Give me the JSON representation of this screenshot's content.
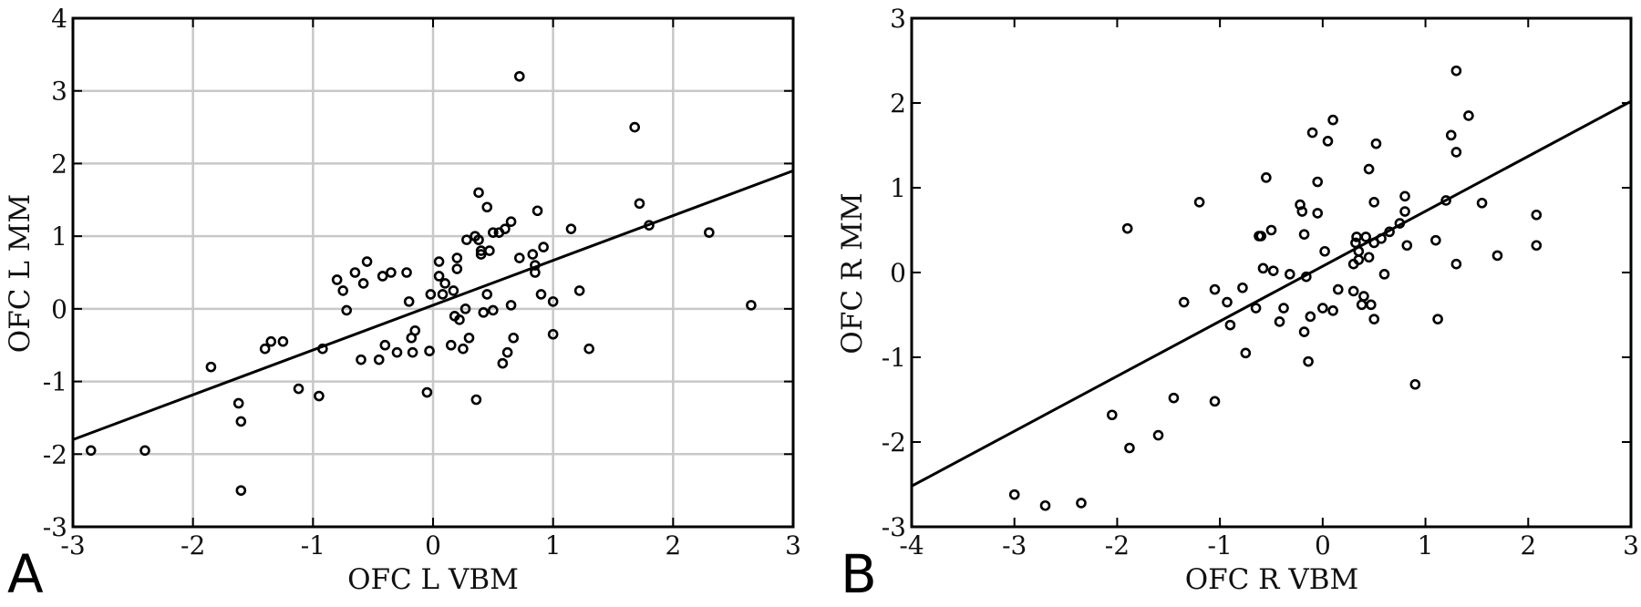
{
  "chart_data": [
    {
      "type": "scatter",
      "panel_label": "A",
      "xlabel": "OFC L  VBM",
      "ylabel": "OFC L  MM",
      "xlim": [
        -3,
        3
      ],
      "ylim": [
        -3,
        4
      ],
      "xticks": [
        -3,
        -2,
        -1,
        0,
        1,
        2,
        3
      ],
      "yticks": [
        -3,
        -2,
        -1,
        0,
        1,
        2,
        3,
        4
      ],
      "grid": true,
      "fit_line": {
        "x": [
          -3,
          3
        ],
        "y": [
          -1.8,
          1.9
        ]
      },
      "points": {
        "x": [
          -2.85,
          -2.4,
          -1.85,
          -1.62,
          -1.6,
          -1.6,
          -1.4,
          -1.35,
          -1.25,
          -1.12,
          -0.95,
          -0.92,
          -0.8,
          -0.75,
          -0.72,
          -0.65,
          -0.6,
          -0.58,
          -0.55,
          -0.45,
          -0.42,
          -0.4,
          -0.35,
          -0.3,
          -0.22,
          -0.2,
          -0.18,
          -0.17,
          -0.15,
          -0.05,
          -0.03,
          -0.02,
          0.05,
          0.05,
          0.08,
          0.1,
          0.15,
          0.17,
          0.18,
          0.2,
          0.2,
          0.22,
          0.25,
          0.27,
          0.28,
          0.3,
          0.35,
          0.36,
          0.38,
          0.38,
          0.4,
          0.4,
          0.42,
          0.45,
          0.45,
          0.47,
          0.5,
          0.5,
          0.55,
          0.58,
          0.6,
          0.62,
          0.65,
          0.65,
          0.67,
          0.72,
          0.72,
          0.83,
          0.85,
          0.85,
          0.87,
          0.9,
          0.92,
          1.0,
          1.0,
          1.15,
          1.22,
          1.3,
          1.68,
          1.72,
          1.8,
          2.3,
          2.65
        ],
        "y": [
          -1.95,
          -1.95,
          -0.8,
          -1.3,
          -2.5,
          -1.55,
          -0.55,
          -0.45,
          -0.45,
          -1.1,
          -1.2,
          -0.55,
          0.4,
          0.25,
          -0.02,
          0.5,
          -0.7,
          0.35,
          0.65,
          -0.7,
          0.45,
          -0.5,
          0.5,
          -0.6,
          0.5,
          0.1,
          -0.4,
          -0.6,
          -0.3,
          -1.15,
          -0.58,
          0.2,
          0.65,
          0.45,
          0.2,
          0.35,
          -0.5,
          0.25,
          -0.1,
          0.7,
          0.55,
          -0.15,
          -0.55,
          0.0,
          0.95,
          -0.4,
          1.0,
          -1.25,
          0.95,
          1.6,
          0.75,
          0.8,
          -0.05,
          0.2,
          1.4,
          0.8,
          1.05,
          -0.02,
          1.05,
          -0.75,
          1.1,
          -0.6,
          0.05,
          1.2,
          -0.4,
          3.2,
          0.7,
          0.75,
          0.5,
          0.6,
          1.35,
          0.2,
          0.85,
          0.1,
          -0.35,
          1.1,
          0.25,
          -0.55,
          2.5,
          1.45,
          1.15,
          1.05,
          0.05
        ]
      }
    },
    {
      "type": "scatter",
      "panel_label": "B",
      "xlabel": "OFC R  VBM",
      "ylabel": "OFC R  MM",
      "xlim": [
        -4,
        3
      ],
      "ylim": [
        -3,
        3
      ],
      "xticks": [
        -4,
        -3,
        -2,
        -1,
        0,
        1,
        2,
        3
      ],
      "yticks": [
        -3,
        -2,
        -1,
        0,
        1,
        2,
        3
      ],
      "grid": false,
      "fit_line": {
        "x": [
          -4,
          3
        ],
        "y": [
          -2.52,
          2.02
        ]
      },
      "points": {
        "x": [
          -3.0,
          -2.7,
          -2.35,
          -2.05,
          -1.9,
          -1.88,
          -1.6,
          -1.45,
          -1.35,
          -1.2,
          -1.05,
          -1.05,
          -0.93,
          -0.9,
          -0.78,
          -0.75,
          -0.65,
          -0.62,
          -0.6,
          -0.58,
          -0.55,
          -0.5,
          -0.48,
          -0.42,
          -0.38,
          -0.32,
          -0.22,
          -0.2,
          -0.18,
          -0.18,
          -0.16,
          -0.14,
          -0.12,
          -0.1,
          -0.05,
          -0.05,
          0.0,
          0.02,
          0.05,
          0.1,
          0.1,
          0.15,
          0.3,
          0.3,
          0.32,
          0.33,
          0.35,
          0.35,
          0.38,
          0.4,
          0.42,
          0.45,
          0.45,
          0.47,
          0.5,
          0.5,
          0.5,
          0.52,
          0.57,
          0.6,
          0.65,
          0.75,
          0.8,
          0.8,
          0.82,
          0.9,
          1.1,
          1.12,
          1.2,
          1.25,
          1.3,
          1.3,
          1.3,
          1.42,
          1.55,
          1.7,
          2.08,
          2.08
        ],
        "y": [
          -2.62,
          -2.75,
          -2.72,
          -1.68,
          0.52,
          -2.07,
          -1.92,
          -1.48,
          -0.35,
          0.83,
          -0.2,
          -1.52,
          -0.35,
          -0.62,
          -0.18,
          -0.95,
          -0.42,
          0.43,
          0.43,
          0.05,
          1.12,
          0.5,
          0.02,
          -0.58,
          -0.42,
          -0.02,
          0.8,
          0.72,
          0.45,
          -0.7,
          -0.05,
          -1.05,
          -0.52,
          1.65,
          0.7,
          1.07,
          -0.42,
          0.25,
          1.55,
          1.8,
          -0.45,
          -0.2,
          -0.22,
          0.1,
          0.35,
          0.42,
          0.25,
          0.15,
          -0.38,
          -0.28,
          0.42,
          0.18,
          1.22,
          -0.38,
          0.83,
          0.35,
          -0.55,
          1.52,
          0.4,
          -0.02,
          0.48,
          0.58,
          0.72,
          0.9,
          0.32,
          -1.32,
          0.38,
          -0.55,
          0.85,
          1.62,
          0.1,
          1.42,
          2.38,
          1.85,
          0.82,
          0.2,
          0.68,
          0.32
        ]
      }
    }
  ]
}
